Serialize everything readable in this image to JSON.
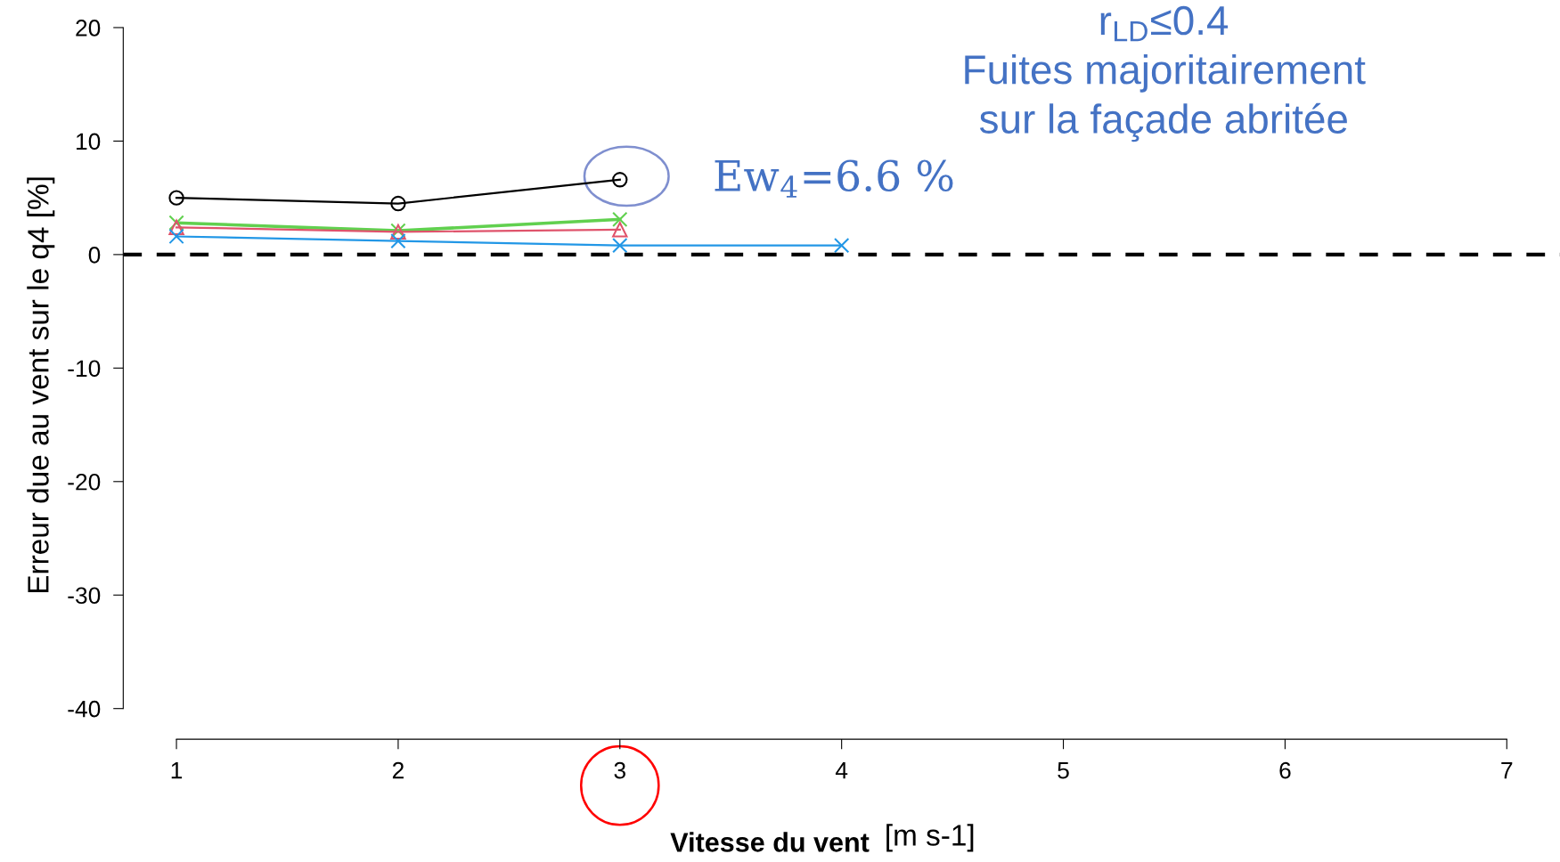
{
  "chart_data": {
    "type": "line",
    "xlabel": "Vitesse du vent",
    "ylabel": "Erreur due au vent sur le q4 [%]",
    "x": [
      1,
      2,
      3,
      4
    ],
    "series": [
      {
        "color": "#000000",
        "marker": "circle",
        "values": [
          5.0,
          4.5,
          6.6,
          null
        ]
      },
      {
        "color": "#61d04f",
        "marker": "cross",
        "values": [
          2.8,
          2.1,
          3.1,
          null
        ]
      },
      {
        "color": "#df536b",
        "marker": "triangle",
        "values": [
          2.4,
          2.0,
          2.2,
          null
        ]
      },
      {
        "color": "#2297e6",
        "marker": "cross",
        "values": [
          1.6,
          1.2,
          0.8,
          0.8
        ]
      }
    ],
    "xlim": [
      0.76,
      7.24
    ],
    "ylim": [
      -43,
      20
    ],
    "xticks": [
      1,
      2,
      3,
      4,
      5,
      6,
      7
    ],
    "yticks": [
      -40,
      -30,
      -20,
      -10,
      0,
      10,
      20
    ],
    "ref_lines": [
      {
        "axis": "y",
        "value": 0,
        "color": "#000000",
        "line_style": "dashed"
      }
    ],
    "annotations": [
      {
        "text": "Ew$_{4}$=6.6 %",
        "x": 3,
        "y": 6.6
      },
      "r$_{LD}$≤0.4",
      "Fuites majoritairement",
      "sur la façade abritée",
      "[m s-1]"
    ],
    "grid": false,
    "legend": false
  }
}
